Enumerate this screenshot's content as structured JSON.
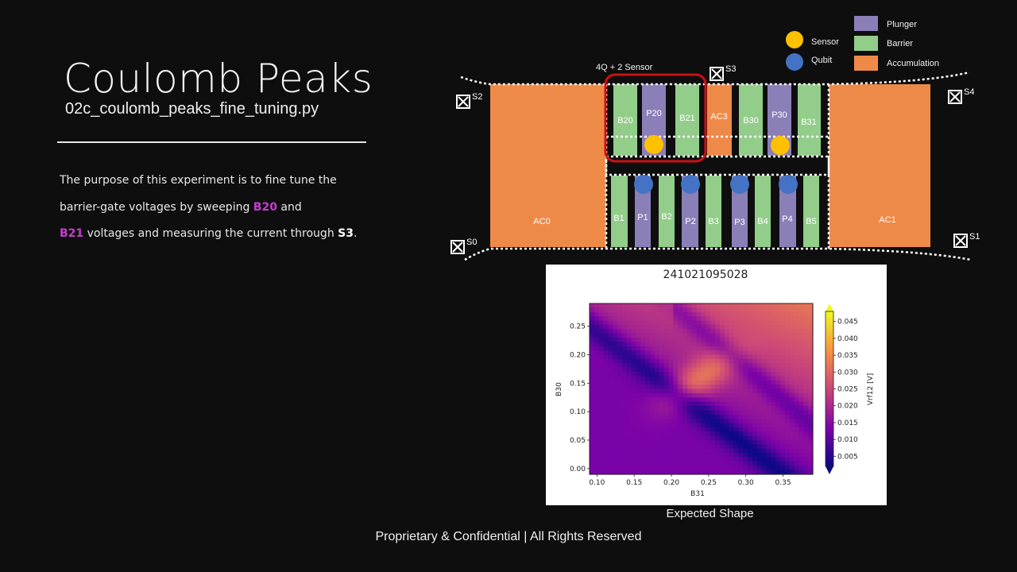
{
  "slide": {
    "title": "Coulomb Peaks",
    "subtitle": "02c_coulomb_peaks_fine_tuning.py",
    "description": {
      "part1": "The purpose of this experiment is to fine tune the",
      "part2": "barrier-gate voltages by sweeping ",
      "gate_a": "B20",
      "part3": " and",
      "gate_b": "B21",
      "part4": " voltages and measuring the current through ",
      "sensor": "S3",
      "part5": "."
    },
    "footer": "Proprietary & Confidential | All Rights Reserved"
  },
  "colors": {
    "plunger": "#8b7fb8",
    "barrier": "#92cd8a",
    "accumulation": "#ee8a48",
    "sensor": "#ffc000",
    "qubit": "#4472c4",
    "highlight": "#cc1111",
    "gate_text_highlight": "#c83cd2"
  },
  "legend": [
    {
      "label": "Plunger",
      "color": "#8b7fb8"
    },
    {
      "label": "Barrier",
      "color": "#92cd8a"
    },
    {
      "label": "Accumulation",
      "color": "#ee8a48"
    }
  ],
  "dot_legend": [
    {
      "label": "Sensor",
      "color": "#ffc000"
    },
    {
      "label": "Qubit",
      "color": "#4472c4"
    }
  ],
  "device": {
    "highlight_label": "4Q + 2 Sensor",
    "contacts": [
      "S0",
      "S1",
      "S2",
      "S3",
      "S4"
    ],
    "reservoirs": [
      "AC0",
      "AC1"
    ],
    "top_gates": [
      {
        "label": "B20",
        "type": "barrier"
      },
      {
        "label": "P20",
        "type": "plunger"
      },
      {
        "label": "B21",
        "type": "barrier"
      },
      {
        "label": "AC3",
        "type": "accumulation"
      },
      {
        "label": "B30",
        "type": "barrier"
      },
      {
        "label": "P30",
        "type": "plunger"
      },
      {
        "label": "B31",
        "type": "barrier"
      }
    ],
    "bottom_gates": [
      {
        "label": "B1",
        "type": "barrier"
      },
      {
        "label": "P1",
        "type": "plunger"
      },
      {
        "label": "B2",
        "type": "barrier"
      },
      {
        "label": "P2",
        "type": "plunger"
      },
      {
        "label": "B3",
        "type": "barrier"
      },
      {
        "label": "P3",
        "type": "plunger"
      },
      {
        "label": "B4",
        "type": "barrier"
      },
      {
        "label": "P4",
        "type": "plunger"
      },
      {
        "label": "B5",
        "type": "barrier"
      }
    ]
  },
  "chart_data": {
    "type": "heatmap",
    "title": "241021095028",
    "xlabel": "B31",
    "ylabel": "B30",
    "colorbar_label": "Vrf12 [V]",
    "xlim": [
      0.09,
      0.39
    ],
    "ylim": [
      -0.01,
      0.29
    ],
    "xticks": [
      "0.10",
      "0.15",
      "0.20",
      "0.25",
      "0.30",
      "0.35"
    ],
    "yticks": [
      "0.00",
      "0.05",
      "0.10",
      "0.15",
      "0.20",
      "0.25"
    ],
    "colorbar_range": [
      0.002,
      0.048
    ],
    "colorbar_ticks": [
      "0.005",
      "0.010",
      "0.015",
      "0.020",
      "0.025",
      "0.030",
      "0.035",
      "0.040",
      "0.045"
    ],
    "colormap": "plasma",
    "caption": "Expected Shape"
  }
}
